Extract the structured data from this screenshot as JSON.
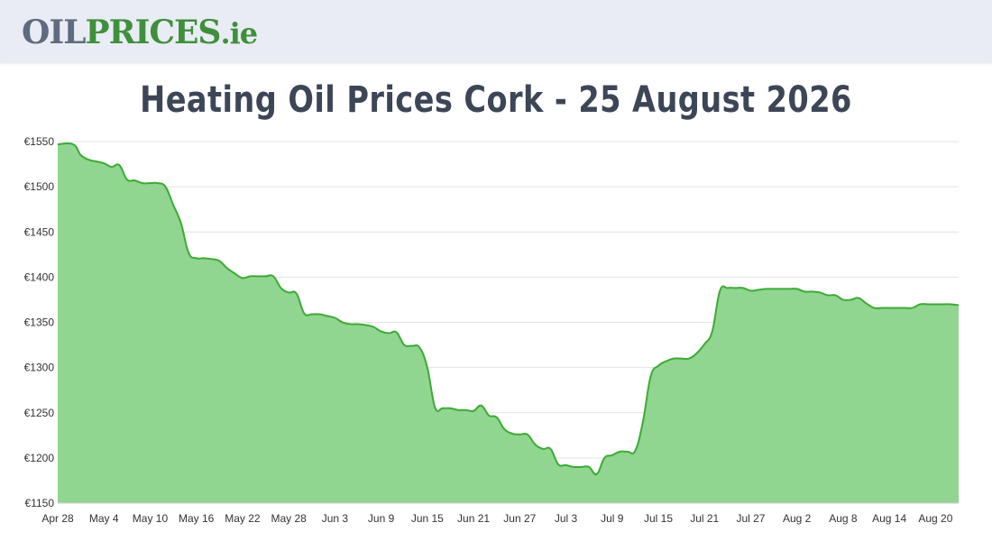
{
  "header": {
    "logo_part1": "OIL",
    "logo_part2": "PRICES",
    "logo_part3": ".ie"
  },
  "page_title": "Heating Oil Prices Cork - 25 August 2026",
  "colors": {
    "line": "#3daa34",
    "area": "#90d590",
    "logo_gray": "#5f6b7e",
    "logo_green": "#3f8f3c",
    "title": "#3d4656"
  },
  "chart_data": {
    "type": "area",
    "title": "",
    "xlabel": "",
    "ylabel": "",
    "ylim": [
      1150,
      1550
    ],
    "y_ticks": [
      "€1150",
      "€1200",
      "€1250",
      "€1300",
      "€1350",
      "€1400",
      "€1450",
      "€1500",
      "€1550"
    ],
    "x_ticks": [
      "Apr 28",
      "May 4",
      "May 10",
      "May 16",
      "May 22",
      "May 28",
      "Jun 3",
      "Jun 9",
      "Jun 15",
      "Jun 21",
      "Jun 27",
      "Jul 3",
      "Jul 9",
      "Jul 15",
      "Jul 21",
      "Jul 27",
      "Aug 2",
      "Aug 8",
      "Aug 14",
      "Aug 20"
    ],
    "grid": true,
    "series": [
      {
        "values": [
          [
            "2026-04-28",
            1547
          ],
          [
            "2026-04-30",
            1547
          ],
          [
            "2026-05-01",
            1535
          ],
          [
            "2026-05-02",
            1530
          ],
          [
            "2026-05-03",
            1528
          ],
          [
            "2026-05-04",
            1526
          ],
          [
            "2026-05-05",
            1522
          ],
          [
            "2026-05-06",
            1524
          ],
          [
            "2026-05-07",
            1508
          ],
          [
            "2026-05-08",
            1507
          ],
          [
            "2026-05-09",
            1504
          ],
          [
            "2026-05-10",
            1504
          ],
          [
            "2026-05-11",
            1504
          ],
          [
            "2026-05-12",
            1500
          ],
          [
            "2026-05-13",
            1480
          ],
          [
            "2026-05-14",
            1460
          ],
          [
            "2026-05-15",
            1427
          ],
          [
            "2026-05-16",
            1421
          ],
          [
            "2026-05-17",
            1421
          ],
          [
            "2026-05-18",
            1420
          ],
          [
            "2026-05-19",
            1418
          ],
          [
            "2026-05-20",
            1410
          ],
          [
            "2026-05-21",
            1404
          ],
          [
            "2026-05-22",
            1399
          ],
          [
            "2026-05-23",
            1401
          ],
          [
            "2026-05-24",
            1401
          ],
          [
            "2026-05-25",
            1401
          ],
          [
            "2026-05-26",
            1401
          ],
          [
            "2026-05-27",
            1388
          ],
          [
            "2026-05-28",
            1383
          ],
          [
            "2026-05-29",
            1382
          ],
          [
            "2026-05-30",
            1360
          ],
          [
            "2026-05-31",
            1359
          ],
          [
            "2026-06-01",
            1359
          ],
          [
            "2026-06-02",
            1357
          ],
          [
            "2026-06-03",
            1355
          ],
          [
            "2026-06-04",
            1350
          ],
          [
            "2026-06-05",
            1348
          ],
          [
            "2026-06-06",
            1348
          ],
          [
            "2026-06-07",
            1347
          ],
          [
            "2026-06-08",
            1345
          ],
          [
            "2026-06-09",
            1340
          ],
          [
            "2026-06-10",
            1338
          ],
          [
            "2026-06-11",
            1339
          ],
          [
            "2026-06-12",
            1325
          ],
          [
            "2026-06-13",
            1324
          ],
          [
            "2026-06-14",
            1322
          ],
          [
            "2026-06-15",
            1300
          ],
          [
            "2026-06-16",
            1256
          ],
          [
            "2026-06-17",
            1255
          ],
          [
            "2026-06-18",
            1255
          ],
          [
            "2026-06-19",
            1253
          ],
          [
            "2026-06-20",
            1253
          ],
          [
            "2026-06-21",
            1252
          ],
          [
            "2026-06-22",
            1258
          ],
          [
            "2026-06-23",
            1247
          ],
          [
            "2026-06-24",
            1245
          ],
          [
            "2026-06-25",
            1232
          ],
          [
            "2026-06-26",
            1227
          ],
          [
            "2026-06-27",
            1226
          ],
          [
            "2026-06-28",
            1226
          ],
          [
            "2026-06-29",
            1215
          ],
          [
            "2026-06-30",
            1210
          ],
          [
            "2026-07-01",
            1210
          ],
          [
            "2026-07-02",
            1193
          ],
          [
            "2026-07-03",
            1192
          ],
          [
            "2026-07-04",
            1190
          ],
          [
            "2026-07-05",
            1190
          ],
          [
            "2026-07-06",
            1190
          ],
          [
            "2026-07-07",
            1182
          ],
          [
            "2026-07-08",
            1200
          ],
          [
            "2026-07-09",
            1203
          ],
          [
            "2026-07-10",
            1207
          ],
          [
            "2026-07-11",
            1207
          ],
          [
            "2026-07-12",
            1208
          ],
          [
            "2026-07-13",
            1240
          ],
          [
            "2026-07-14",
            1290
          ],
          [
            "2026-07-15",
            1302
          ],
          [
            "2026-07-16",
            1307
          ],
          [
            "2026-07-17",
            1310
          ],
          [
            "2026-07-18",
            1310
          ],
          [
            "2026-07-19",
            1310
          ],
          [
            "2026-07-20",
            1316
          ],
          [
            "2026-07-21",
            1326
          ],
          [
            "2026-07-22",
            1340
          ],
          [
            "2026-07-23",
            1385
          ],
          [
            "2026-07-24",
            1388
          ],
          [
            "2026-07-25",
            1388
          ],
          [
            "2026-07-26",
            1388
          ],
          [
            "2026-07-27",
            1385
          ],
          [
            "2026-07-28",
            1386
          ],
          [
            "2026-07-29",
            1387
          ],
          [
            "2026-07-30",
            1387
          ],
          [
            "2026-07-31",
            1387
          ],
          [
            "2026-08-01",
            1387
          ],
          [
            "2026-08-02",
            1387
          ],
          [
            "2026-08-03",
            1384
          ],
          [
            "2026-08-04",
            1384
          ],
          [
            "2026-08-05",
            1383
          ],
          [
            "2026-08-06",
            1380
          ],
          [
            "2026-08-07",
            1380
          ],
          [
            "2026-08-08",
            1375
          ],
          [
            "2026-08-09",
            1375
          ],
          [
            "2026-08-10",
            1377
          ],
          [
            "2026-08-11",
            1371
          ],
          [
            "2026-08-12",
            1366
          ],
          [
            "2026-08-13",
            1366
          ],
          [
            "2026-08-14",
            1366
          ],
          [
            "2026-08-15",
            1366
          ],
          [
            "2026-08-16",
            1366
          ],
          [
            "2026-08-17",
            1366
          ],
          [
            "2026-08-18",
            1370
          ],
          [
            "2026-08-19",
            1370
          ],
          [
            "2026-08-20",
            1370
          ],
          [
            "2026-08-21",
            1370
          ],
          [
            "2026-08-22",
            1370
          ],
          [
            "2026-08-23",
            1369
          ]
        ]
      }
    ]
  }
}
